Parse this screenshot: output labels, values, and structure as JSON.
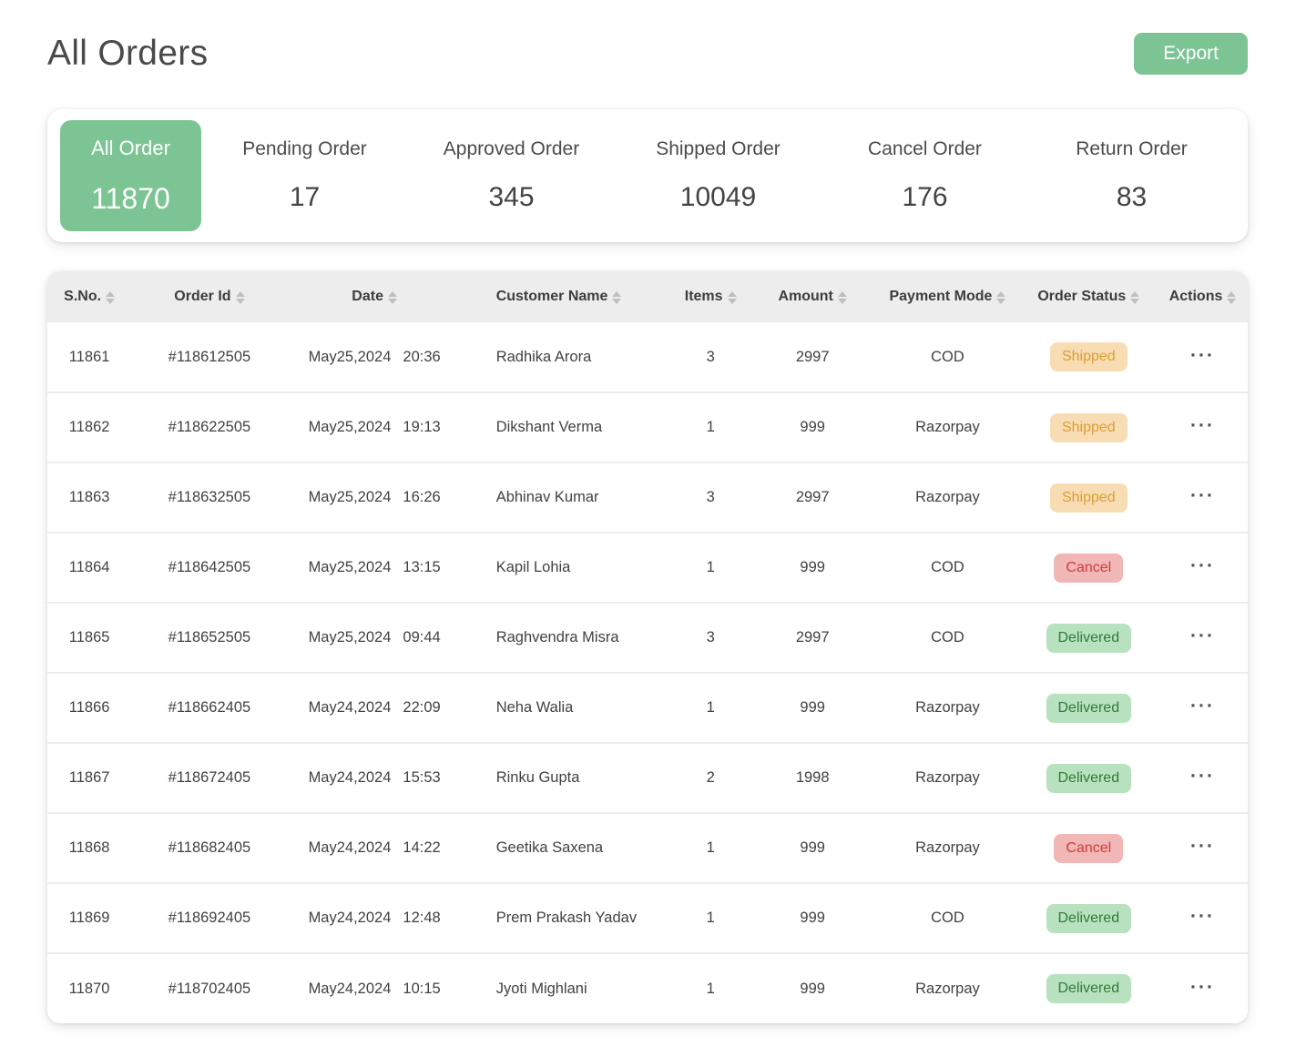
{
  "page": {
    "title": "All Orders"
  },
  "export_button": "Export",
  "summary": {
    "items": [
      {
        "label": "All Order",
        "value": "11870",
        "active": true
      },
      {
        "label": "Pending Order",
        "value": "17",
        "active": false
      },
      {
        "label": "Approved Order",
        "value": "345",
        "active": false
      },
      {
        "label": "Shipped Order",
        "value": "10049",
        "active": false
      },
      {
        "label": "Cancel Order",
        "value": "176",
        "active": false
      },
      {
        "label": "Return Order",
        "value": "83",
        "active": false
      }
    ]
  },
  "table": {
    "columns": [
      "S.No.",
      "Order Id",
      "Date",
      "Customer Name",
      "Items",
      "Amount",
      "Payment Mode",
      "Order Status",
      "Actions"
    ],
    "actions_icon": "···",
    "rows": [
      {
        "sno": "11861",
        "order_id": "#118612505",
        "date": "May25,2024",
        "time": "20:36",
        "customer": "Radhika Arora",
        "items": "3",
        "amount": "2997",
        "payment": "COD",
        "status": "Shipped"
      },
      {
        "sno": "11862",
        "order_id": "#118622505",
        "date": "May25,2024",
        "time": "19:13",
        "customer": "Dikshant Verma",
        "items": "1",
        "amount": "999",
        "payment": "Razorpay",
        "status": "Shipped"
      },
      {
        "sno": "11863",
        "order_id": "#118632505",
        "date": "May25,2024",
        "time": "16:26",
        "customer": "Abhinav Kumar",
        "items": "3",
        "amount": "2997",
        "payment": "Razorpay",
        "status": "Shipped"
      },
      {
        "sno": "11864",
        "order_id": "#118642505",
        "date": "May25,2024",
        "time": "13:15",
        "customer": "Kapil Lohia",
        "items": "1",
        "amount": "999",
        "payment": "COD",
        "status": "Cancel"
      },
      {
        "sno": "11865",
        "order_id": "#118652505",
        "date": "May25,2024",
        "time": "09:44",
        "customer": "Raghvendra Misra",
        "items": "3",
        "amount": "2997",
        "payment": "COD",
        "status": "Delivered"
      },
      {
        "sno": "11866",
        "order_id": "#118662405",
        "date": "May24,2024",
        "time": "22:09",
        "customer": "Neha Walia",
        "items": "1",
        "amount": "999",
        "payment": "Razorpay",
        "status": "Delivered"
      },
      {
        "sno": "11867",
        "order_id": "#118672405",
        "date": "May24,2024",
        "time": "15:53",
        "customer": "Rinku Gupta",
        "items": "2",
        "amount": "1998",
        "payment": "Razorpay",
        "status": "Delivered"
      },
      {
        "sno": "11868",
        "order_id": "#118682405",
        "date": "May24,2024",
        "time": "14:22",
        "customer": "Geetika Saxena",
        "items": "1",
        "amount": "999",
        "payment": "Razorpay",
        "status": "Cancel"
      },
      {
        "sno": "11869",
        "order_id": "#118692405",
        "date": "May24,2024",
        "time": "12:48",
        "customer": "Prem Prakash Yadav",
        "items": "1",
        "amount": "999",
        "payment": "COD",
        "status": "Delivered"
      },
      {
        "sno": "11870",
        "order_id": "#118702405",
        "date": "May24,2024",
        "time": "10:15",
        "customer": "Jyoti Mighlani",
        "items": "1",
        "amount": "999",
        "payment": "Razorpay",
        "status": "Delivered"
      }
    ]
  },
  "colors": {
    "accent_green": "#7dc495",
    "header_bg": "#ededed",
    "status": {
      "Shipped": {
        "bg": "#f8ddb4",
        "text": "#dc9e33"
      },
      "Cancel": {
        "bg": "#f1b6b6",
        "text": "#d23a3a"
      },
      "Delivered": {
        "bg": "#b8e2bf",
        "text": "#2e7d36"
      }
    }
  }
}
